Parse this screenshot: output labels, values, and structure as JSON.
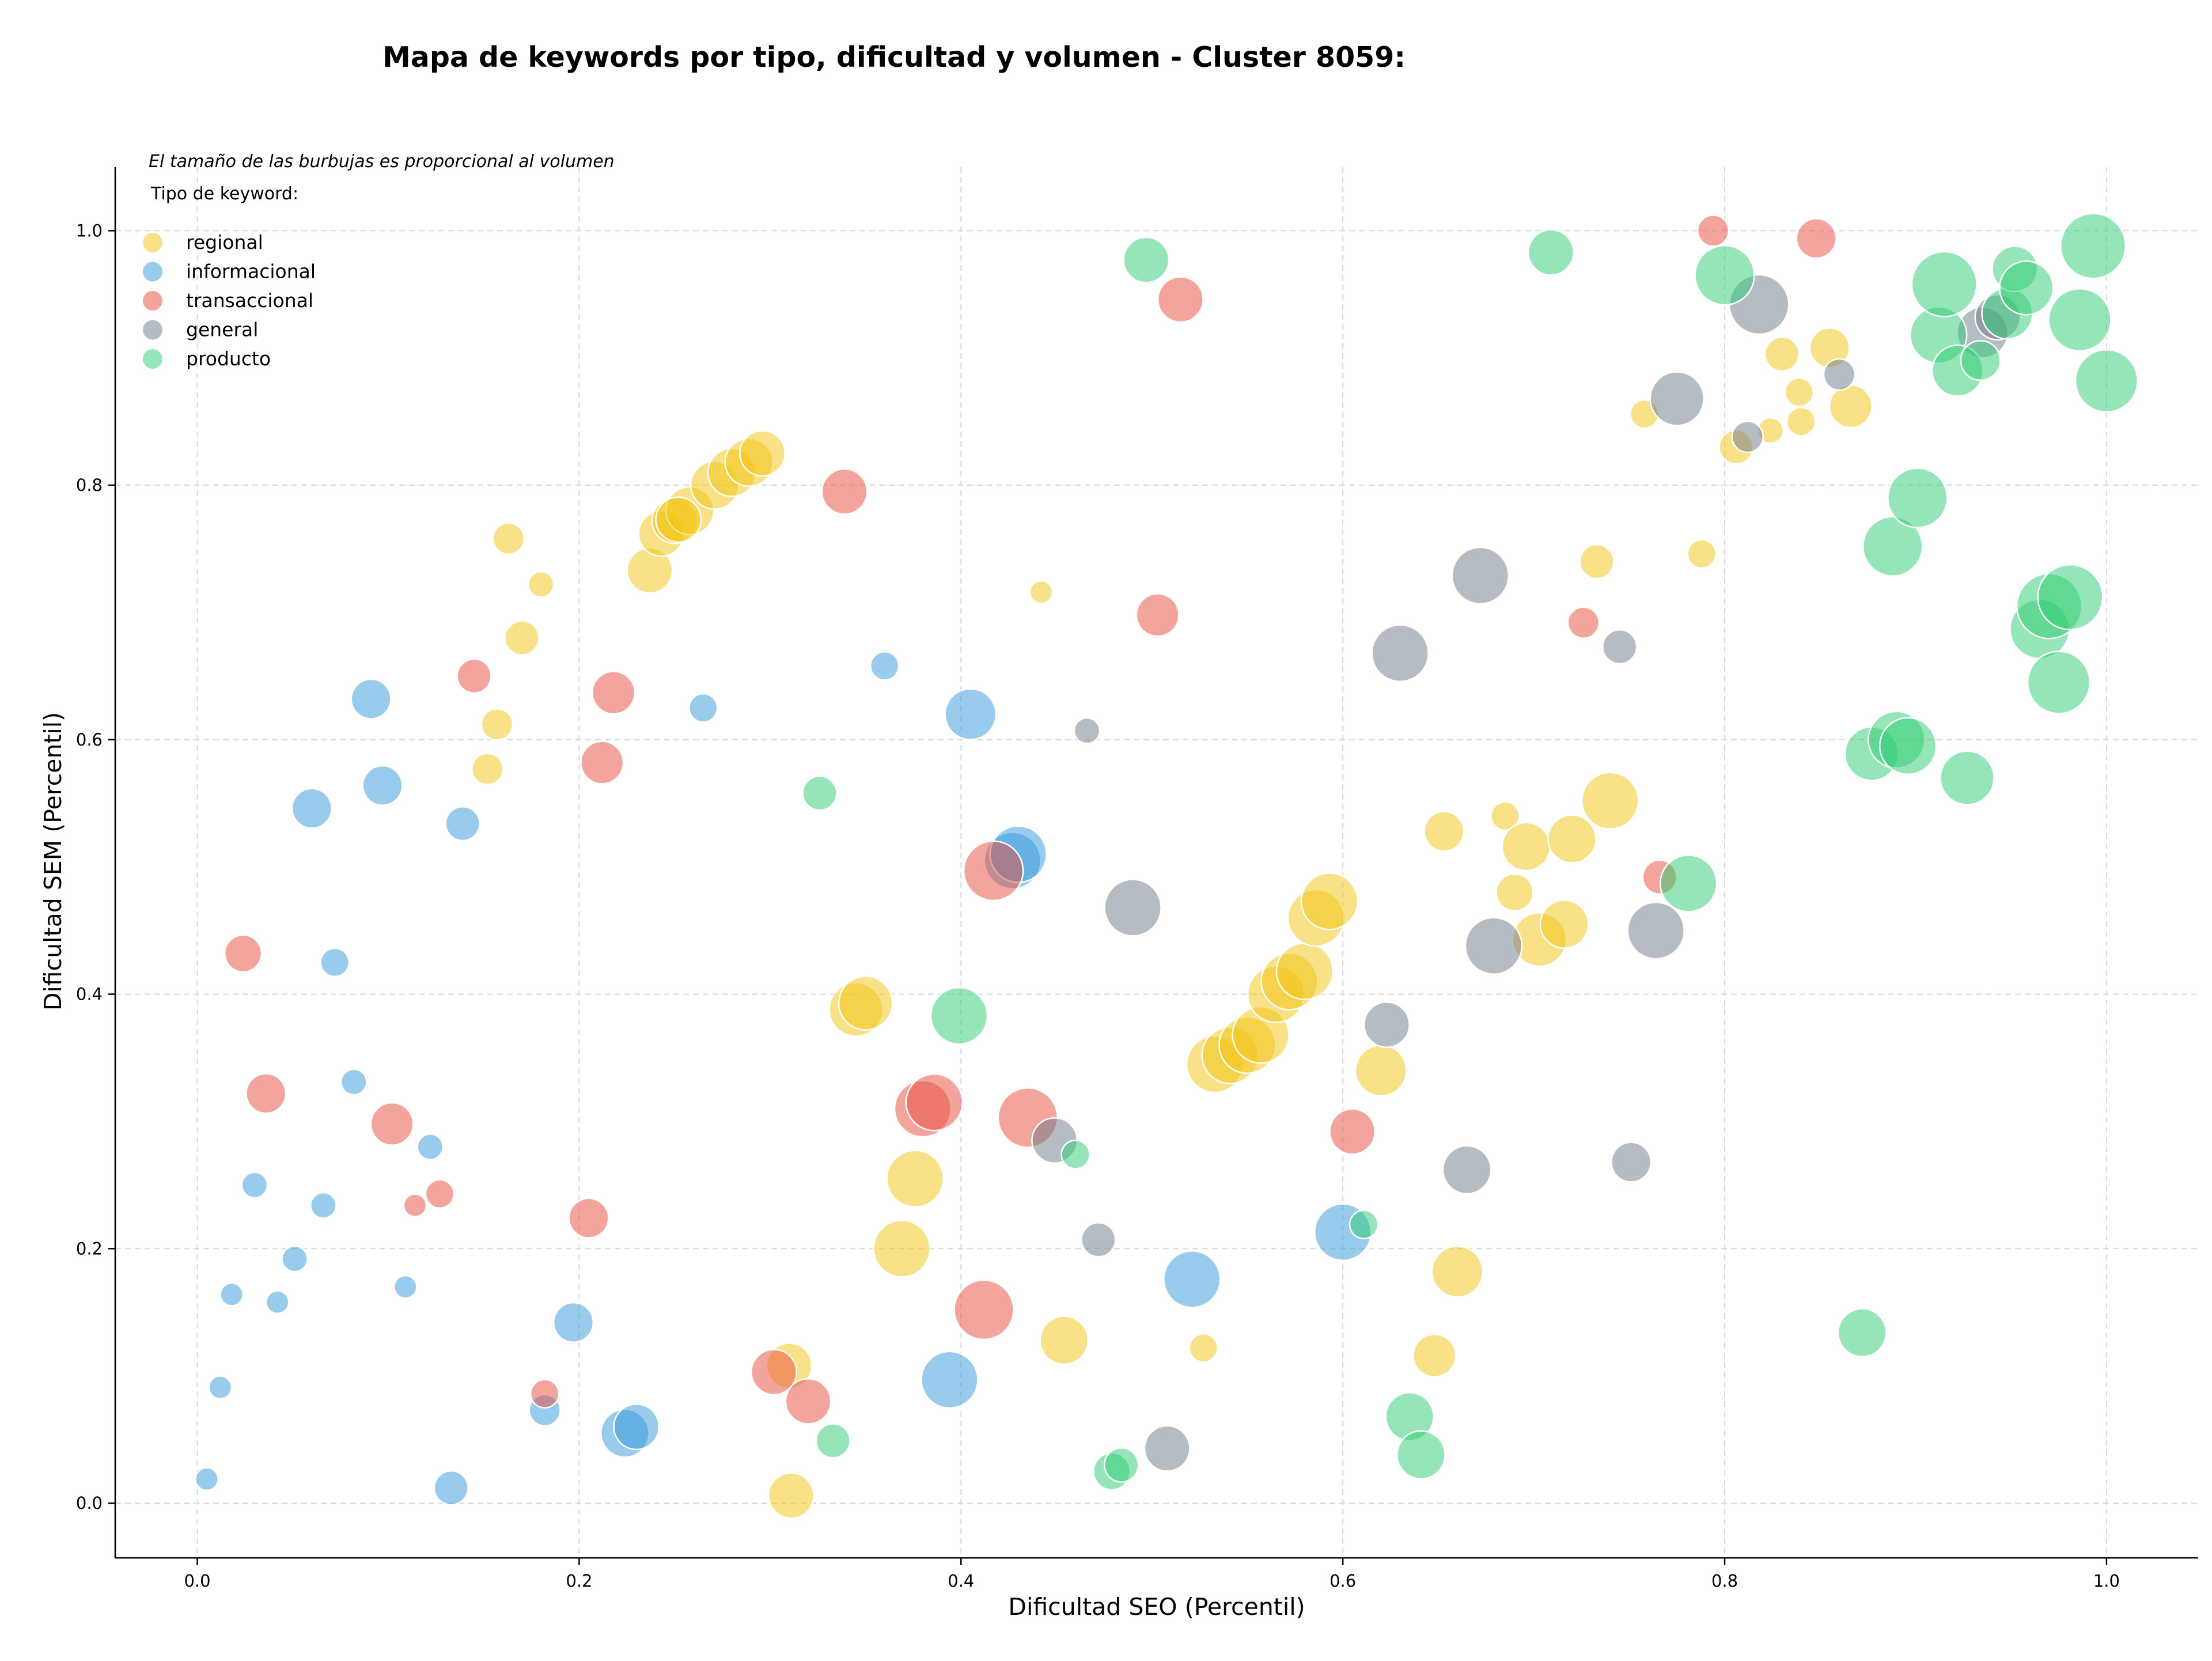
{
  "chart_data": {
    "type": "scatter",
    "title": "Mapa de keywords por tipo, dificultad y volumen - Cluster 8059:",
    "xlabel": "Dificultad SEO (Percentil)",
    "ylabel": "Dificultad SEM (Percentil)",
    "xlim": [
      -0.043,
      1.048
    ],
    "ylim": [
      -0.043,
      1.05
    ],
    "xticks": [
      "0.0",
      "0.2",
      "0.4",
      "0.6",
      "0.8",
      "1.0"
    ],
    "yticks": [
      "0.0",
      "0.2",
      "0.4",
      "0.6",
      "0.8",
      "1.0"
    ],
    "grid": true,
    "annotation": "El tamaño de las burbujas es proporcional al volumen",
    "legend": {
      "title": "Tipo de keyword:",
      "placement": "top-left"
    },
    "series": [
      {
        "name": "regional",
        "color": "#f1c40f",
        "points": [
          [
            0.163,
            0.758,
            1.1
          ],
          [
            0.18,
            0.722,
            0.9
          ],
          [
            0.17,
            0.68,
            1.2
          ],
          [
            0.157,
            0.612,
            1.1
          ],
          [
            0.152,
            0.577,
            1.1
          ],
          [
            0.237,
            0.733,
            1.6
          ],
          [
            0.243,
            0.762,
            1.6
          ],
          [
            0.25,
            0.772,
            1.6
          ],
          [
            0.258,
            0.78,
            1.7
          ],
          [
            0.271,
            0.8,
            1.7
          ],
          [
            0.28,
            0.81,
            1.7
          ],
          [
            0.289,
            0.818,
            1.7
          ],
          [
            0.296,
            0.825,
            1.6
          ],
          [
            0.252,
            0.773,
            1.6
          ],
          [
            0.442,
            0.716,
            0.8
          ],
          [
            0.345,
            0.388,
            1.9
          ],
          [
            0.35,
            0.393,
            1.9
          ],
          [
            0.376,
            0.255,
            2.0
          ],
          [
            0.369,
            0.2,
            2.0
          ],
          [
            0.31,
            0.108,
            1.6
          ],
          [
            0.311,
            0.006,
            1.6
          ],
          [
            0.454,
            0.128,
            1.7
          ],
          [
            0.527,
            0.122,
            1.0
          ],
          [
            0.533,
            0.345,
            2.0
          ],
          [
            0.541,
            0.352,
            2.0
          ],
          [
            0.55,
            0.36,
            2.0
          ],
          [
            0.557,
            0.368,
            2.0
          ],
          [
            0.565,
            0.4,
            2.0
          ],
          [
            0.572,
            0.41,
            2.0
          ],
          [
            0.58,
            0.418,
            2.0
          ],
          [
            0.586,
            0.46,
            2.0
          ],
          [
            0.593,
            0.473,
            2.0
          ],
          [
            0.62,
            0.34,
            1.8
          ],
          [
            0.66,
            0.182,
            1.8
          ],
          [
            0.648,
            0.116,
            1.5
          ],
          [
            0.653,
            0.528,
            1.4
          ],
          [
            0.685,
            0.54,
            1.0
          ],
          [
            0.69,
            0.48,
            1.3
          ],
          [
            0.696,
            0.516,
            1.7
          ],
          [
            0.703,
            0.443,
            1.9
          ],
          [
            0.716,
            0.455,
            1.7
          ],
          [
            0.72,
            0.522,
            1.7
          ],
          [
            0.74,
            0.552,
            2.0
          ],
          [
            0.733,
            0.74,
            1.2
          ],
          [
            0.758,
            0.856,
            1.0
          ],
          [
            0.788,
            0.746,
            1.0
          ],
          [
            0.806,
            0.83,
            1.2
          ],
          [
            0.824,
            0.843,
            0.9
          ],
          [
            0.83,
            0.903,
            1.2
          ],
          [
            0.839,
            0.873,
            1.0
          ],
          [
            0.84,
            0.85,
            1.0
          ],
          [
            0.855,
            0.908,
            1.4
          ],
          [
            0.866,
            0.862,
            1.5
          ]
        ]
      },
      {
        "name": "informacional",
        "color": "#3498db",
        "points": [
          [
            0.091,
            0.632,
            1.4
          ],
          [
            0.06,
            0.546,
            1.4
          ],
          [
            0.097,
            0.564,
            1.4
          ],
          [
            0.139,
            0.534,
            1.2
          ],
          [
            0.265,
            0.625,
            1.0
          ],
          [
            0.36,
            0.658,
            1.0
          ],
          [
            0.405,
            0.62,
            1.8
          ],
          [
            0.072,
            0.425,
            1.0
          ],
          [
            0.082,
            0.331,
            0.9
          ],
          [
            0.122,
            0.28,
            0.9
          ],
          [
            0.03,
            0.25,
            0.9
          ],
          [
            0.066,
            0.234,
            0.9
          ],
          [
            0.051,
            0.192,
            0.9
          ],
          [
            0.018,
            0.164,
            0.8
          ],
          [
            0.042,
            0.158,
            0.8
          ],
          [
            0.109,
            0.17,
            0.8
          ],
          [
            0.197,
            0.142,
            1.4
          ],
          [
            0.012,
            0.091,
            0.8
          ],
          [
            0.005,
            0.019,
            0.8
          ],
          [
            0.133,
            0.012,
            1.2
          ],
          [
            0.182,
            0.073,
            1.1
          ],
          [
            0.224,
            0.055,
            1.7
          ],
          [
            0.23,
            0.06,
            1.6
          ],
          [
            0.394,
            0.097,
            2.0
          ],
          [
            0.427,
            0.505,
            2.0
          ],
          [
            0.43,
            0.51,
            2.0
          ],
          [
            0.521,
            0.176,
            2.0
          ],
          [
            0.6,
            0.213,
            2.0
          ]
        ]
      },
      {
        "name": "transaccional",
        "color": "#e74c3c",
        "points": [
          [
            0.145,
            0.65,
            1.2
          ],
          [
            0.218,
            0.637,
            1.5
          ],
          [
            0.212,
            0.582,
            1.5
          ],
          [
            0.339,
            0.795,
            1.6
          ],
          [
            0.024,
            0.432,
            1.3
          ],
          [
            0.036,
            0.322,
            1.4
          ],
          [
            0.102,
            0.298,
            1.5
          ],
          [
            0.127,
            0.243,
            1.0
          ],
          [
            0.114,
            0.234,
            0.8
          ],
          [
            0.205,
            0.224,
            1.4
          ],
          [
            0.182,
            0.086,
            1.0
          ],
          [
            0.302,
            0.103,
            1.6
          ],
          [
            0.32,
            0.08,
            1.6
          ],
          [
            0.38,
            0.31,
            2.0
          ],
          [
            0.386,
            0.315,
            2.0
          ],
          [
            0.412,
            0.152,
            2.1
          ],
          [
            0.417,
            0.497,
            2.1
          ],
          [
            0.435,
            0.303,
            2.1
          ],
          [
            0.503,
            0.698,
            1.5
          ],
          [
            0.515,
            0.946,
            1.6
          ],
          [
            0.605,
            0.292,
            1.6
          ],
          [
            0.726,
            0.692,
            1.1
          ],
          [
            0.766,
            0.492,
            1.2
          ],
          [
            0.794,
            1.0,
            1.1
          ],
          [
            0.848,
            0.994,
            1.4
          ]
        ]
      },
      {
        "name": "general",
        "color": "#6c7a89",
        "points": [
          [
            0.466,
            0.607,
            0.9
          ],
          [
            0.449,
            0.285,
            1.6
          ],
          [
            0.472,
            0.207,
            1.2
          ],
          [
            0.49,
            0.468,
            2.0
          ],
          [
            0.508,
            0.043,
            1.6
          ],
          [
            0.63,
            0.668,
            2.0
          ],
          [
            0.623,
            0.376,
            1.6
          ],
          [
            0.665,
            0.262,
            1.7
          ],
          [
            0.672,
            0.729,
            2.0
          ],
          [
            0.679,
            0.438,
            2.0
          ],
          [
            0.745,
            0.673,
            1.2
          ],
          [
            0.751,
            0.268,
            1.4
          ],
          [
            0.764,
            0.45,
            2.0
          ],
          [
            0.775,
            0.868,
            1.9
          ],
          [
            0.812,
            0.838,
            1.1
          ],
          [
            0.818,
            0.942,
            2.1
          ],
          [
            0.86,
            0.887,
            1.1
          ],
          [
            0.935,
            0.92,
            1.8
          ],
          [
            0.943,
            0.932,
            1.6
          ]
        ]
      },
      {
        "name": "producto",
        "color": "#2ecc71",
        "points": [
          [
            0.326,
            0.558,
            1.2
          ],
          [
            0.333,
            0.049,
            1.2
          ],
          [
            0.399,
            0.383,
            2.0
          ],
          [
            0.46,
            0.274,
            1.0
          ],
          [
            0.479,
            0.025,
            1.3
          ],
          [
            0.484,
            0.03,
            1.2
          ],
          [
            0.497,
            0.977,
            1.6
          ],
          [
            0.611,
            0.219,
            1.0
          ],
          [
            0.635,
            0.068,
            1.7
          ],
          [
            0.641,
            0.038,
            1.7
          ],
          [
            0.709,
            0.983,
            1.6
          ],
          [
            0.781,
            0.487,
            2.0
          ],
          [
            0.8,
            0.965,
            2.1
          ],
          [
            0.872,
            0.134,
            1.7
          ],
          [
            0.877,
            0.589,
            1.9
          ],
          [
            0.888,
            0.752,
            2.1
          ],
          [
            0.89,
            0.6,
            2.0
          ],
          [
            0.896,
            0.595,
            2.0
          ],
          [
            0.901,
            0.79,
            2.1
          ],
          [
            0.912,
            0.918,
            2.0
          ],
          [
            0.915,
            0.958,
            2.3
          ],
          [
            0.922,
            0.89,
            1.8
          ],
          [
            0.927,
            0.57,
            1.9
          ],
          [
            0.934,
            0.898,
            1.4
          ],
          [
            0.948,
            0.935,
            1.8
          ],
          [
            0.952,
            0.97,
            1.6
          ],
          [
            0.958,
            0.955,
            1.9
          ],
          [
            0.965,
            0.687,
            2.1
          ],
          [
            0.97,
            0.705,
            2.3
          ],
          [
            0.975,
            0.645,
            2.2
          ],
          [
            0.981,
            0.712,
            2.3
          ],
          [
            0.986,
            0.93,
            2.2
          ],
          [
            0.993,
            0.988,
            2.3
          ],
          [
            1.0,
            0.882,
            2.2
          ]
        ]
      }
    ]
  }
}
